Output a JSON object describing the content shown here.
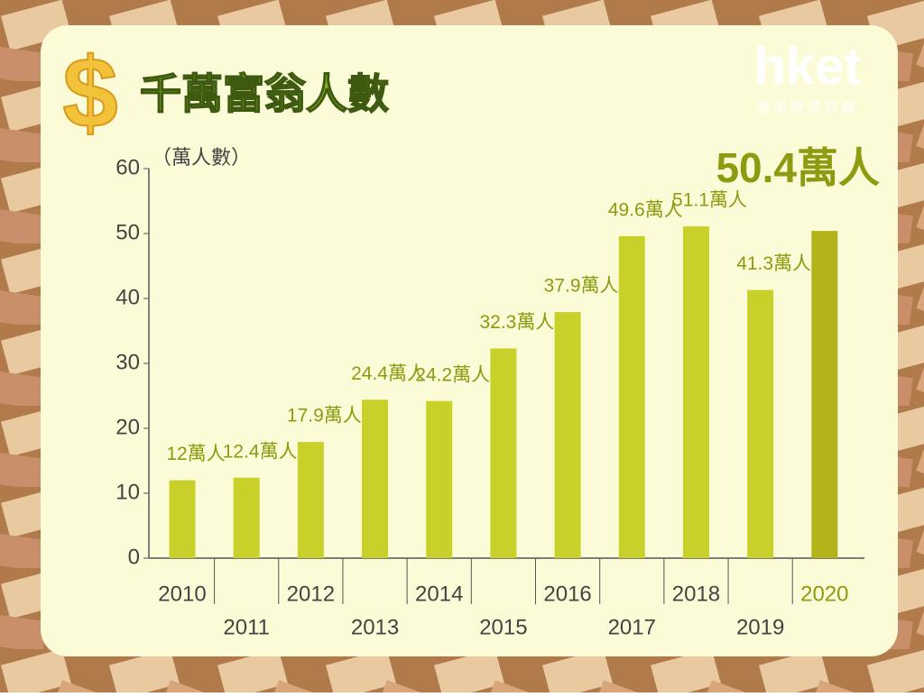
{
  "chart_data": {
    "type": "bar",
    "title": "千萬富翁人數",
    "y_label": "（萬人數）",
    "logo": "hket",
    "logo_subtitle": "香港經濟日報",
    "categories": [
      "2010",
      "2011",
      "2012",
      "2013",
      "2014",
      "2015",
      "2016",
      "2017",
      "2018",
      "2019",
      "2020"
    ],
    "values": [
      12,
      12.4,
      17.9,
      24.4,
      24.2,
      32.3,
      37.9,
      49.6,
      51.1,
      41.3,
      50.4
    ],
    "value_labels": [
      "12萬人",
      "12.4萬人",
      "17.9萬人",
      "24.4萬人",
      "24.2萬人",
      "32.3萬人",
      "37.9萬人",
      "49.6萬人",
      "51.1萬人",
      "41.3萬人",
      "50.4萬人"
    ],
    "colors": [
      "#c8d02a",
      "#c8d02a",
      "#c8d02a",
      "#c8d02a",
      "#c8d02a",
      "#c8d02a",
      "#c8d02a",
      "#c8d02a",
      "#c8d02a",
      "#c8d02a",
      "#b3b41a"
    ],
    "ylim": [
      0,
      60
    ],
    "yticks": [
      0,
      10,
      20,
      30,
      40,
      50,
      60
    ],
    "grid": false
  }
}
